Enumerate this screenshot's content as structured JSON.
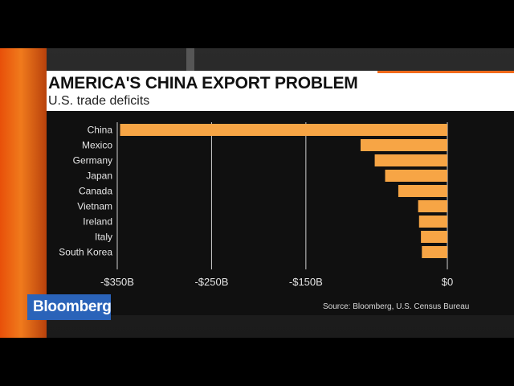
{
  "brand": {
    "name": "Bloomberg"
  },
  "source": "Source: Bloomberg, U.S. Census Bureau",
  "colors": {
    "bar": "#f7a545",
    "accent": "#f26a1b",
    "brand": "#2a63b9"
  },
  "chart_data": {
    "type": "bar",
    "orientation": "horizontal",
    "title": "AMERICA'S CHINA EXPORT PROBLEM",
    "subtitle": "U.S. trade deficits",
    "categories": [
      "China",
      "Mexico",
      "Germany",
      "Japan",
      "Canada",
      "Vietnam",
      "Ireland",
      "Italy",
      "South Korea"
    ],
    "values": [
      -347,
      -92,
      -77,
      -66,
      -52,
      -31,
      -30,
      -28,
      -27
    ],
    "xlim": [
      -350,
      0
    ],
    "xticks": [
      -350,
      -250,
      -150,
      0
    ],
    "xtick_labels": [
      "-$350B",
      "-$250B",
      "-$150B",
      "$0"
    ],
    "unit": "billions USD",
    "grid": true
  }
}
